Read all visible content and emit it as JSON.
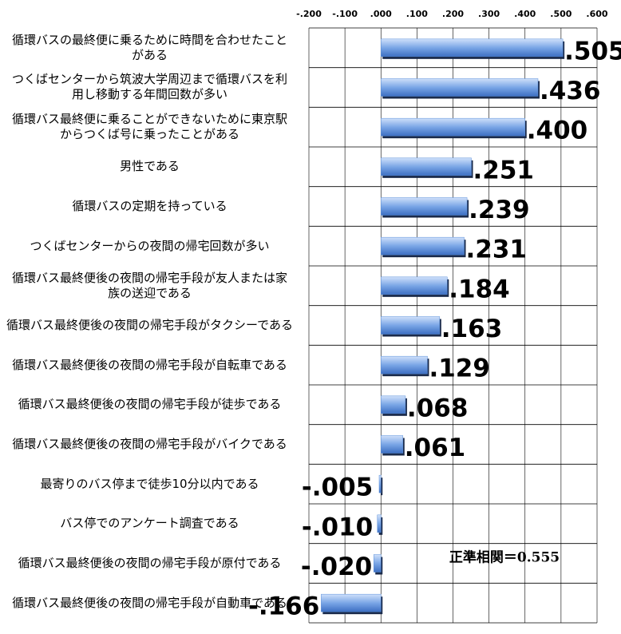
{
  "chart_data": {
    "type": "bar",
    "orientation": "horizontal",
    "categories": [
      "循環バスの最終便に乗るために時間を合わせたことがある",
      "つくばセンターから筑波大学周辺まで循環バスを利用し移動する年間回数が多い",
      "循環バス最終便に乗ることができないために東京駅からつくば号に乗ったことがある",
      "男性である",
      "循環バスの定期を持っている",
      "つくばセンターからの夜間の帰宅回数が多い",
      "循環バス最終便後の夜間の帰宅手段が友人または家族の送迎である",
      "循環バス最終便後の夜間の帰宅手段がタクシーである",
      "循環バス最終便後の夜間の帰宅手段が自転車である",
      "循環バス最終便後の夜間の帰宅手段が徒歩である",
      "循環バス最終便後の夜間の帰宅手段がバイクである",
      "最寄りのバス停まで徒歩10分以内である",
      "バス停でのアンケート調査である",
      "循環バス最終便後の夜間の帰宅手段が原付である",
      "循環バス最終便後の夜間の帰宅手段が自動車である"
    ],
    "values": [
      0.505,
      0.436,
      0.4,
      0.251,
      0.239,
      0.231,
      0.184,
      0.163,
      0.129,
      0.068,
      0.061,
      -0.005,
      -0.01,
      -0.02,
      -0.166
    ],
    "value_labels": [
      ".505",
      ".436",
      ".400",
      ".251",
      ".239",
      ".231",
      ".184",
      ".163",
      ".129",
      ".068",
      ".061",
      "-.005",
      "-.010",
      "-.020",
      "-.166"
    ],
    "color": "#5b8fd9",
    "xlim": [
      -0.2,
      0.6
    ],
    "xticks": [
      {
        "value": -0.2,
        "label": "-.200"
      },
      {
        "value": -0.1,
        "label": "-.100"
      },
      {
        "value": 0,
        "label": ".000"
      },
      {
        "value": 0.1,
        "label": ".100"
      },
      {
        "value": 0.2,
        "label": ".200"
      },
      {
        "value": 0.3,
        "label": ".300"
      },
      {
        "value": 0.4,
        "label": ".400"
      },
      {
        "value": 0.5,
        "label": ".500"
      },
      {
        "value": 0.6,
        "label": ".600"
      }
    ],
    "grid": true,
    "annotation": "正準相関＝0.555"
  }
}
